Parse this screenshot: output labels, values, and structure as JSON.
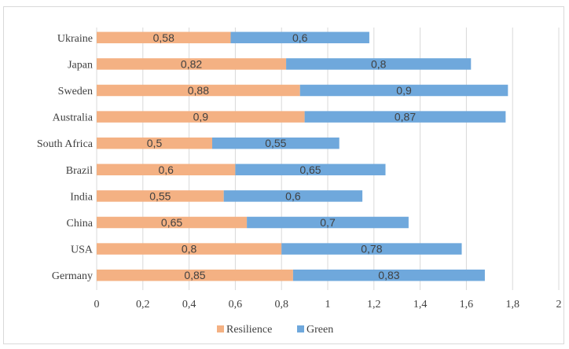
{
  "chart_data": {
    "type": "bar",
    "orientation": "horizontal",
    "stacked": true,
    "categories": [
      "Ukraine",
      "Japan",
      "Sweden",
      "Australia",
      "South Africa",
      "Brazil",
      "India",
      "China",
      "USA",
      "Germany"
    ],
    "series": [
      {
        "name": "Resilience",
        "color": "#f4b183",
        "values": [
          0.58,
          0.82,
          0.88,
          0.9,
          0.5,
          0.6,
          0.55,
          0.65,
          0.8,
          0.85
        ],
        "labels": [
          "0,58",
          "0,82",
          "0,88",
          "0,9",
          "0,5",
          "0,6",
          "0,55",
          "0,65",
          "0,8",
          "0,85"
        ]
      },
      {
        "name": "Green",
        "color": "#6fa8dc",
        "values": [
          0.6,
          0.8,
          0.9,
          0.87,
          0.55,
          0.65,
          0.6,
          0.7,
          0.78,
          0.83
        ],
        "labels": [
          "0,6",
          "0,8",
          "0,9",
          "0,87",
          "0,55",
          "0,65",
          "0,6",
          "0,7",
          "0,78",
          "0,83"
        ]
      }
    ],
    "xlim": [
      0,
      2
    ],
    "x_ticks": [
      0,
      0.2,
      0.4,
      0.6,
      0.8,
      1,
      1.2,
      1.4,
      1.6,
      1.8,
      2
    ],
    "x_tick_labels": [
      "0",
      "0,2",
      "0,4",
      "0,6",
      "0,8",
      "1",
      "1,2",
      "1,4",
      "1,6",
      "1,8",
      "2"
    ],
    "grid": "vertical",
    "legend_position": "bottom",
    "title": "",
    "xlabel": "",
    "ylabel": ""
  }
}
